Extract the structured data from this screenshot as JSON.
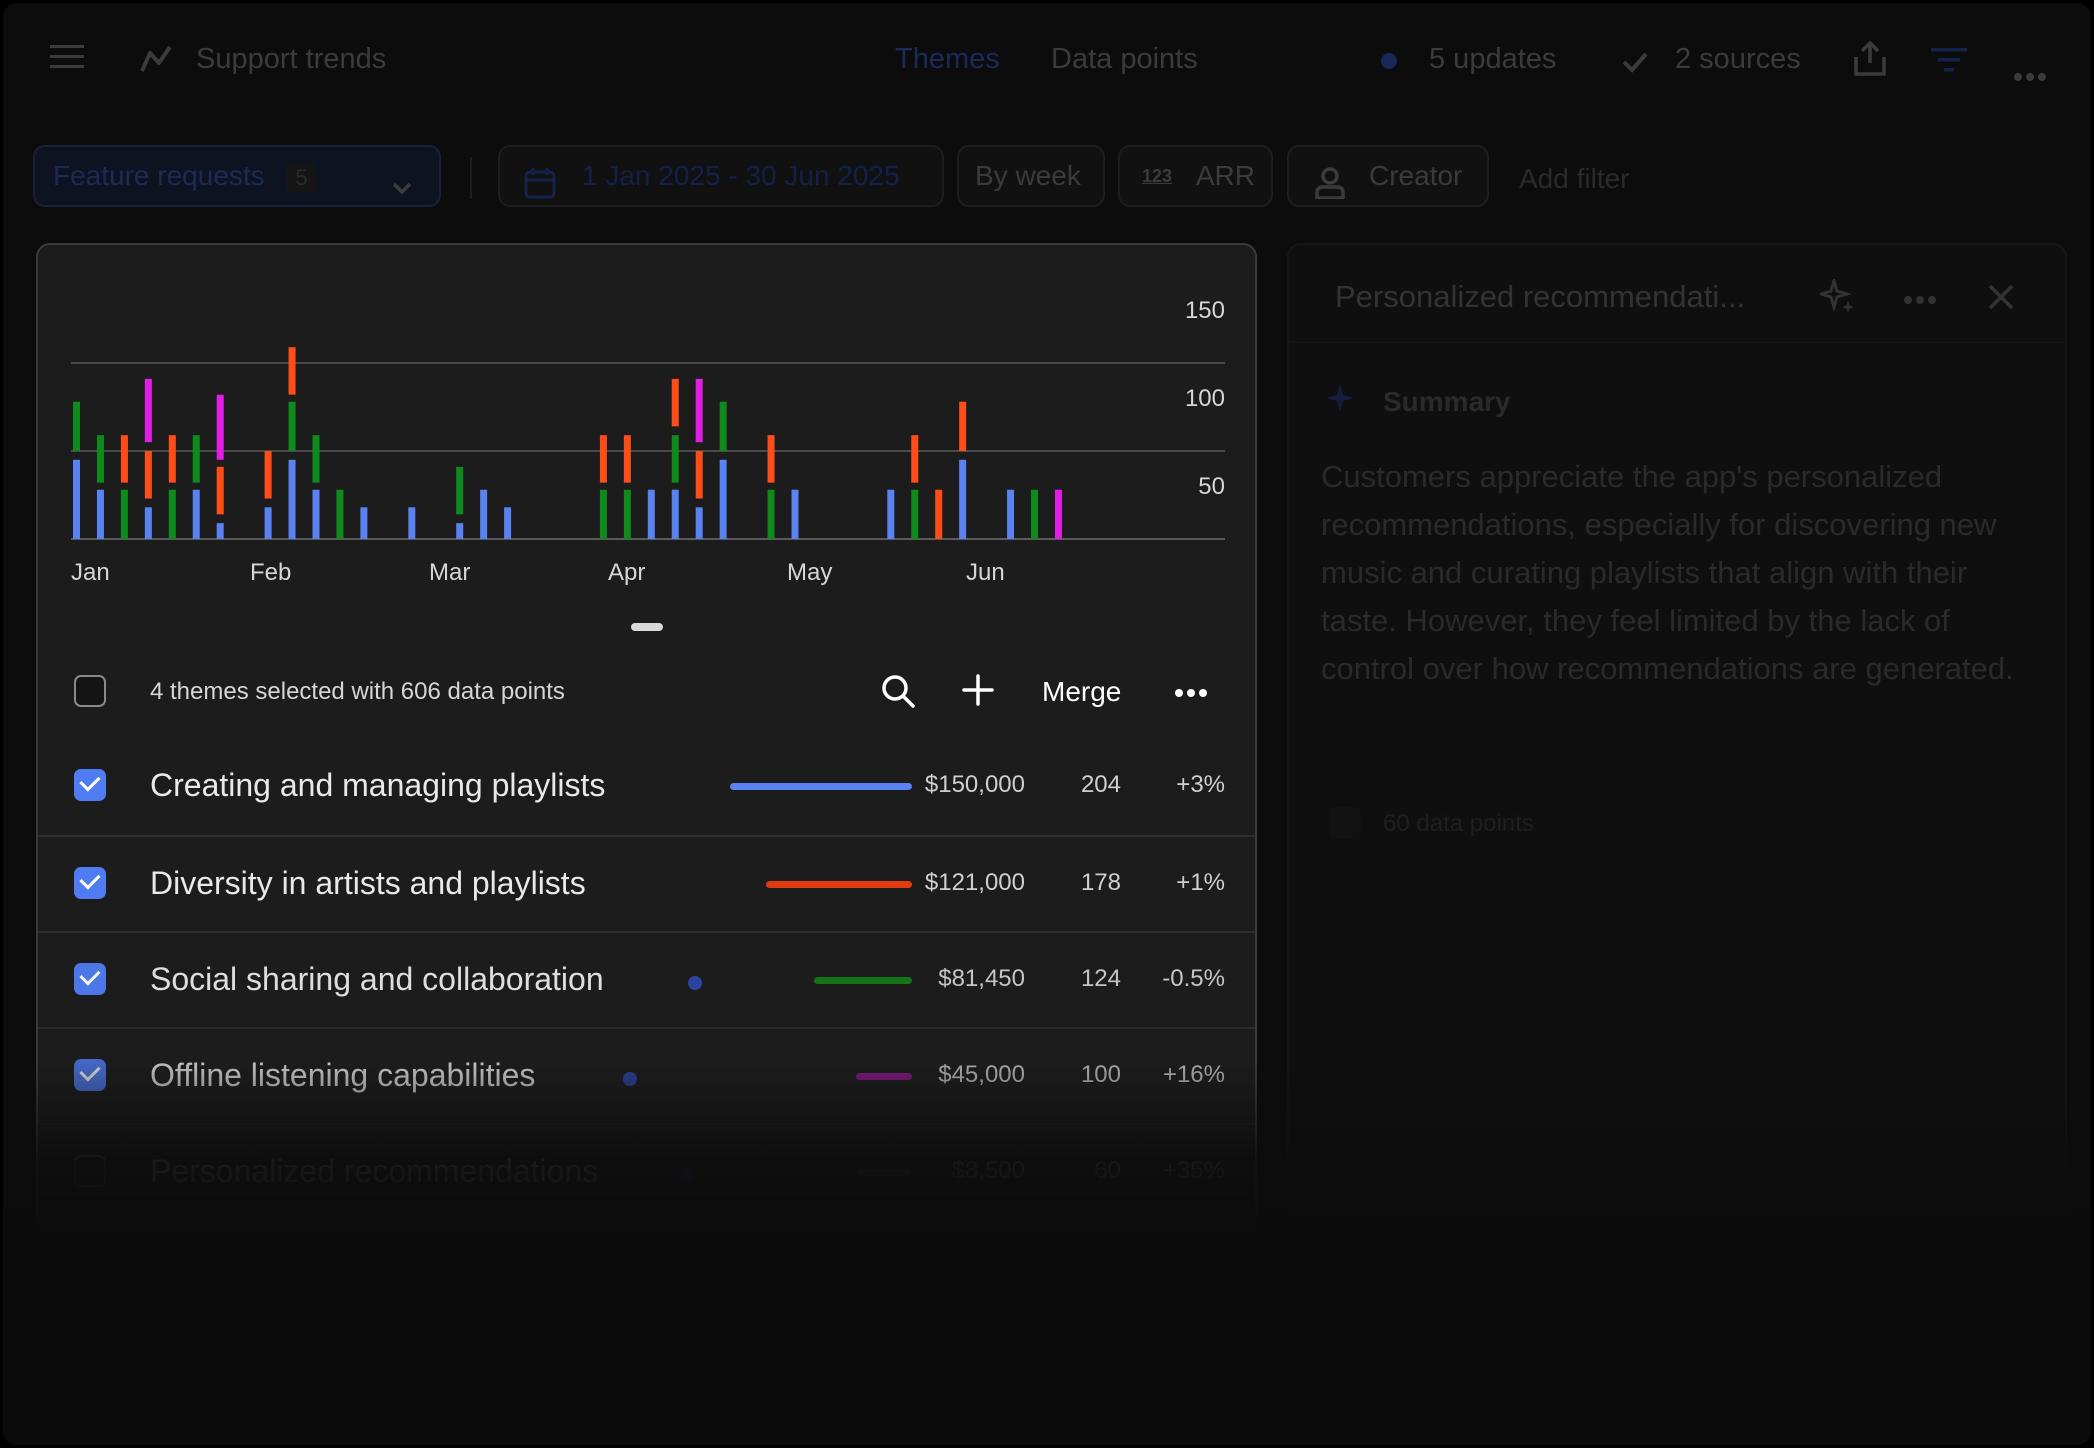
{
  "header": {
    "title": "Support trends",
    "tabs": [
      {
        "label": "Themes",
        "active": true
      },
      {
        "label": "Data points",
        "active": false
      }
    ],
    "updates_label": "5 updates",
    "sources_label": "2 sources"
  },
  "filters": {
    "group_label": "Feature requests",
    "group_count": "5",
    "date_range": "1 Jan 2025 - 30 Jun 2025",
    "granularity": "By week",
    "metric": "ARR",
    "metric_icon_text": "123",
    "creator": "Creator",
    "add_filter": "Add filter"
  },
  "chart_data": {
    "type": "bar",
    "x_tick_labels": [
      "Jan",
      "Feb",
      "Mar",
      "Apr",
      "May",
      "Jun"
    ],
    "y_tick_labels": [
      "150",
      "100",
      "50"
    ],
    "ylim": [
      0,
      150
    ],
    "grid": true,
    "colors": {
      "blue": "#5a82f0",
      "red": "#ff4d1a",
      "green": "#0f8a1c",
      "magenta": "#e01ee6"
    },
    "series_note_colors": [
      "blue",
      "red",
      "green",
      "magenta"
    ],
    "bars": [
      {
        "x": 1,
        "segments": [
          {
            "color": "blue",
            "from": 0,
            "to": 45
          },
          {
            "color": "green",
            "from": 50,
            "to": 78
          }
        ]
      },
      {
        "x": 2,
        "segments": [
          {
            "color": "blue",
            "from": 0,
            "to": 28
          },
          {
            "color": "green",
            "from": 32,
            "to": 59
          }
        ]
      },
      {
        "x": 3,
        "segments": [
          {
            "color": "green",
            "from": 0,
            "to": 28
          },
          {
            "color": "red",
            "from": 32,
            "to": 59
          }
        ]
      },
      {
        "x": 4,
        "segments": [
          {
            "color": "blue",
            "from": 0,
            "to": 18
          },
          {
            "color": "red",
            "from": 23,
            "to": 50
          },
          {
            "color": "magenta",
            "from": 55,
            "to": 91
          }
        ]
      },
      {
        "x": 5,
        "segments": [
          {
            "color": "green",
            "from": 0,
            "to": 28
          },
          {
            "color": "red",
            "from": 32,
            "to": 59
          }
        ]
      },
      {
        "x": 6,
        "segments": [
          {
            "color": "blue",
            "from": 0,
            "to": 28
          },
          {
            "color": "green",
            "from": 32,
            "to": 59
          }
        ]
      },
      {
        "x": 7,
        "segments": [
          {
            "color": "blue",
            "from": 0,
            "to": 9
          },
          {
            "color": "red",
            "from": 14,
            "to": 41
          },
          {
            "color": "magenta",
            "from": 45,
            "to": 82
          }
        ]
      },
      {
        "x": 9,
        "segments": [
          {
            "color": "blue",
            "from": 0,
            "to": 18
          },
          {
            "color": "red",
            "from": 23,
            "to": 50
          }
        ]
      },
      {
        "x": 10,
        "segments": [
          {
            "color": "blue",
            "from": 0,
            "to": 45
          },
          {
            "color": "green",
            "from": 50,
            "to": 78
          },
          {
            "color": "red",
            "from": 82,
            "to": 109
          }
        ]
      },
      {
        "x": 11,
        "segments": [
          {
            "color": "blue",
            "from": 0,
            "to": 28
          },
          {
            "color": "green",
            "from": 32,
            "to": 59
          }
        ]
      },
      {
        "x": 12,
        "segments": [
          {
            "color": "green",
            "from": 0,
            "to": 28
          }
        ]
      },
      {
        "x": 13,
        "segments": [
          {
            "color": "blue",
            "from": 0,
            "to": 18
          }
        ]
      },
      {
        "x": 15,
        "segments": [
          {
            "color": "blue",
            "from": 0,
            "to": 18
          }
        ]
      },
      {
        "x": 17,
        "segments": [
          {
            "color": "blue",
            "from": 0,
            "to": 9
          },
          {
            "color": "green",
            "from": 14,
            "to": 41
          }
        ]
      },
      {
        "x": 18,
        "segments": [
          {
            "color": "blue",
            "from": 0,
            "to": 28
          }
        ]
      },
      {
        "x": 19,
        "segments": [
          {
            "color": "blue",
            "from": 0,
            "to": 18
          }
        ]
      },
      {
        "x": 23,
        "segments": [
          {
            "color": "green",
            "from": 0,
            "to": 28
          },
          {
            "color": "red",
            "from": 32,
            "to": 59
          }
        ]
      },
      {
        "x": 24,
        "segments": [
          {
            "color": "green",
            "from": 0,
            "to": 28
          },
          {
            "color": "red",
            "from": 32,
            "to": 59
          }
        ]
      },
      {
        "x": 25,
        "segments": [
          {
            "color": "blue",
            "from": 0,
            "to": 28
          }
        ]
      },
      {
        "x": 26,
        "segments": [
          {
            "color": "blue",
            "from": 0,
            "to": 28
          },
          {
            "color": "green",
            "from": 32,
            "to": 59
          },
          {
            "color": "red",
            "from": 64,
            "to": 91
          }
        ]
      },
      {
        "x": 27,
        "segments": [
          {
            "color": "blue",
            "from": 0,
            "to": 18
          },
          {
            "color": "red",
            "from": 23,
            "to": 50
          },
          {
            "color": "magenta",
            "from": 55,
            "to": 91
          }
        ]
      },
      {
        "x": 28,
        "segments": [
          {
            "color": "blue",
            "from": 0,
            "to": 45
          },
          {
            "color": "green",
            "from": 50,
            "to": 78
          }
        ]
      },
      {
        "x": 30,
        "segments": [
          {
            "color": "green",
            "from": 0,
            "to": 28
          },
          {
            "color": "red",
            "from": 32,
            "to": 59
          }
        ]
      },
      {
        "x": 31,
        "segments": [
          {
            "color": "blue",
            "from": 0,
            "to": 28
          }
        ]
      },
      {
        "x": 35,
        "segments": [
          {
            "color": "blue",
            "from": 0,
            "to": 28
          }
        ]
      },
      {
        "x": 36,
        "segments": [
          {
            "color": "green",
            "from": 0,
            "to": 28
          },
          {
            "color": "red",
            "from": 32,
            "to": 59
          }
        ]
      },
      {
        "x": 37,
        "segments": [
          {
            "color": "red",
            "from": 0,
            "to": 28
          }
        ]
      },
      {
        "x": 38,
        "segments": [
          {
            "color": "blue",
            "from": 0,
            "to": 45
          },
          {
            "color": "red",
            "from": 50,
            "to": 78
          }
        ]
      },
      {
        "x": 40,
        "segments": [
          {
            "color": "blue",
            "from": 0,
            "to": 28
          }
        ]
      },
      {
        "x": 41,
        "segments": [
          {
            "color": "green",
            "from": 0,
            "to": 28
          }
        ]
      },
      {
        "x": 42,
        "segments": [
          {
            "color": "magenta",
            "from": 0,
            "to": 28
          }
        ]
      }
    ]
  },
  "themes_toolbar": {
    "selection_text": "4 themes selected with 606 data points",
    "merge_label": "Merge"
  },
  "themes": [
    {
      "name": "Creating and managing playlists",
      "value": "$150,000",
      "count": "204",
      "change": "+3%",
      "color": "#5a82f0",
      "checked": true,
      "bar_fraction": 1.0,
      "has_dot": false
    },
    {
      "name": "Diversity in artists and playlists",
      "value": "$121,000",
      "count": "178",
      "change": "+1%",
      "color": "#e03a12",
      "checked": true,
      "bar_fraction": 0.8,
      "has_dot": false
    },
    {
      "name": "Social sharing and collaboration",
      "value": "$81,450",
      "count": "124",
      "change": "-0.5%",
      "color": "#137a17",
      "checked": true,
      "bar_fraction": 0.54,
      "has_dot": true
    },
    {
      "name": "Offline listening capabilities",
      "value": "$45,000",
      "count": "100",
      "change": "+16%",
      "color": "#8c168f",
      "checked": true,
      "bar_fraction": 0.3,
      "has_dot": true
    },
    {
      "name": "Personalized recommendations",
      "value": "$8,500",
      "count": "60",
      "change": "+35%",
      "color": "#6a6a6a",
      "checked": false,
      "bar_fraction": 0.06,
      "has_dot": true
    }
  ],
  "side_panel": {
    "title": "Personalized recommendati...",
    "summary_label": "Summary",
    "summary_text": "Customers appreciate the app's personalized recommendations, especially for discovering new music and curating playlists that align with their taste. However, they feel limited by the lack of control over how recommendations are generated.",
    "data_points_label": "60 data points"
  }
}
